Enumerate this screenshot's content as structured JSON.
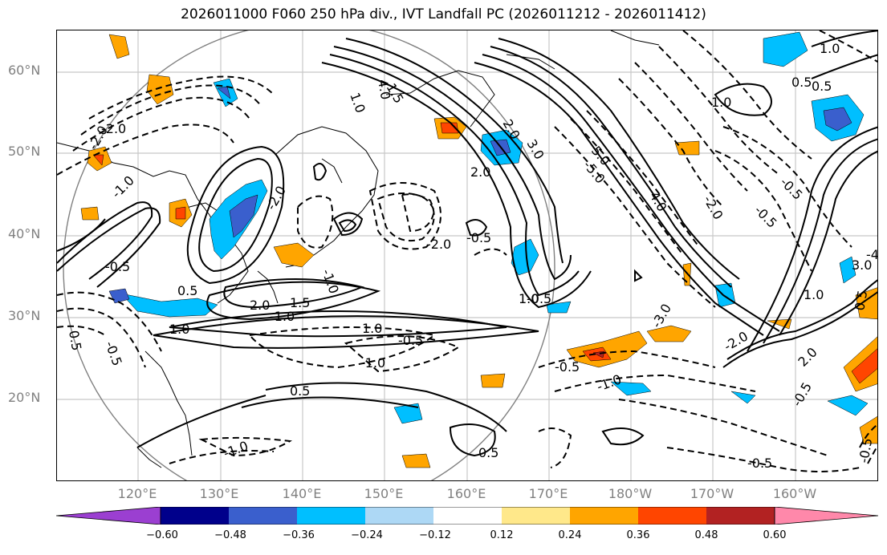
{
  "title": "2026011000 F060 250 hPa div., IVT Landfall PC (2026011212 - 2026011412)",
  "lat_labels": [
    "60°N",
    "50°N",
    "40°N",
    "30°N",
    "20°N"
  ],
  "lon_labels": [
    "120°E",
    "130°E",
    "140°E",
    "150°E",
    "160°E",
    "170°E",
    "180°W",
    "170°W",
    "160°W"
  ],
  "colorbar": {
    "ticks": [
      "−0.60",
      "−0.48",
      "−0.36",
      "−0.24",
      "−0.12",
      "0.12",
      "0.24",
      "0.36",
      "0.48",
      "0.60"
    ],
    "colors": [
      "#9b3fd1",
      "#00008b",
      "#3a5fcd",
      "#00bfff",
      "#add8f5",
      "#ffffff",
      "#ffe88a",
      "#ffa500",
      "#ff4500",
      "#b22222",
      "#ff88aa"
    ]
  },
  "contour_labels": [
    "-2.0",
    "-2.0",
    "-1.0",
    "-0.5",
    "0.5",
    "1.0",
    "1.5",
    "2.0",
    "-2.0",
    "-1.0",
    "0.5",
    "-0.5",
    "-1.0",
    "-0.5",
    "0.5",
    "1.0",
    "-1.0",
    "0.5",
    "2.0",
    "-2.0",
    "-0.5",
    "-1.0",
    "-0.5",
    "1.0",
    "1.5",
    "2.0",
    "3.0",
    "4.0",
    "5.0",
    "-5.0",
    "-4.0",
    "-3.0",
    "-2.0",
    "-0.5",
    "-0.5",
    "-2.0",
    "1.0",
    "0.5",
    "-0.5",
    "1.0",
    "-0.5",
    "0.5",
    "2.0",
    "3.0",
    "-4.0",
    "-0.5",
    "0.5",
    "1.0",
    "-1.0",
    "-0.5",
    "1.0"
  ]
}
